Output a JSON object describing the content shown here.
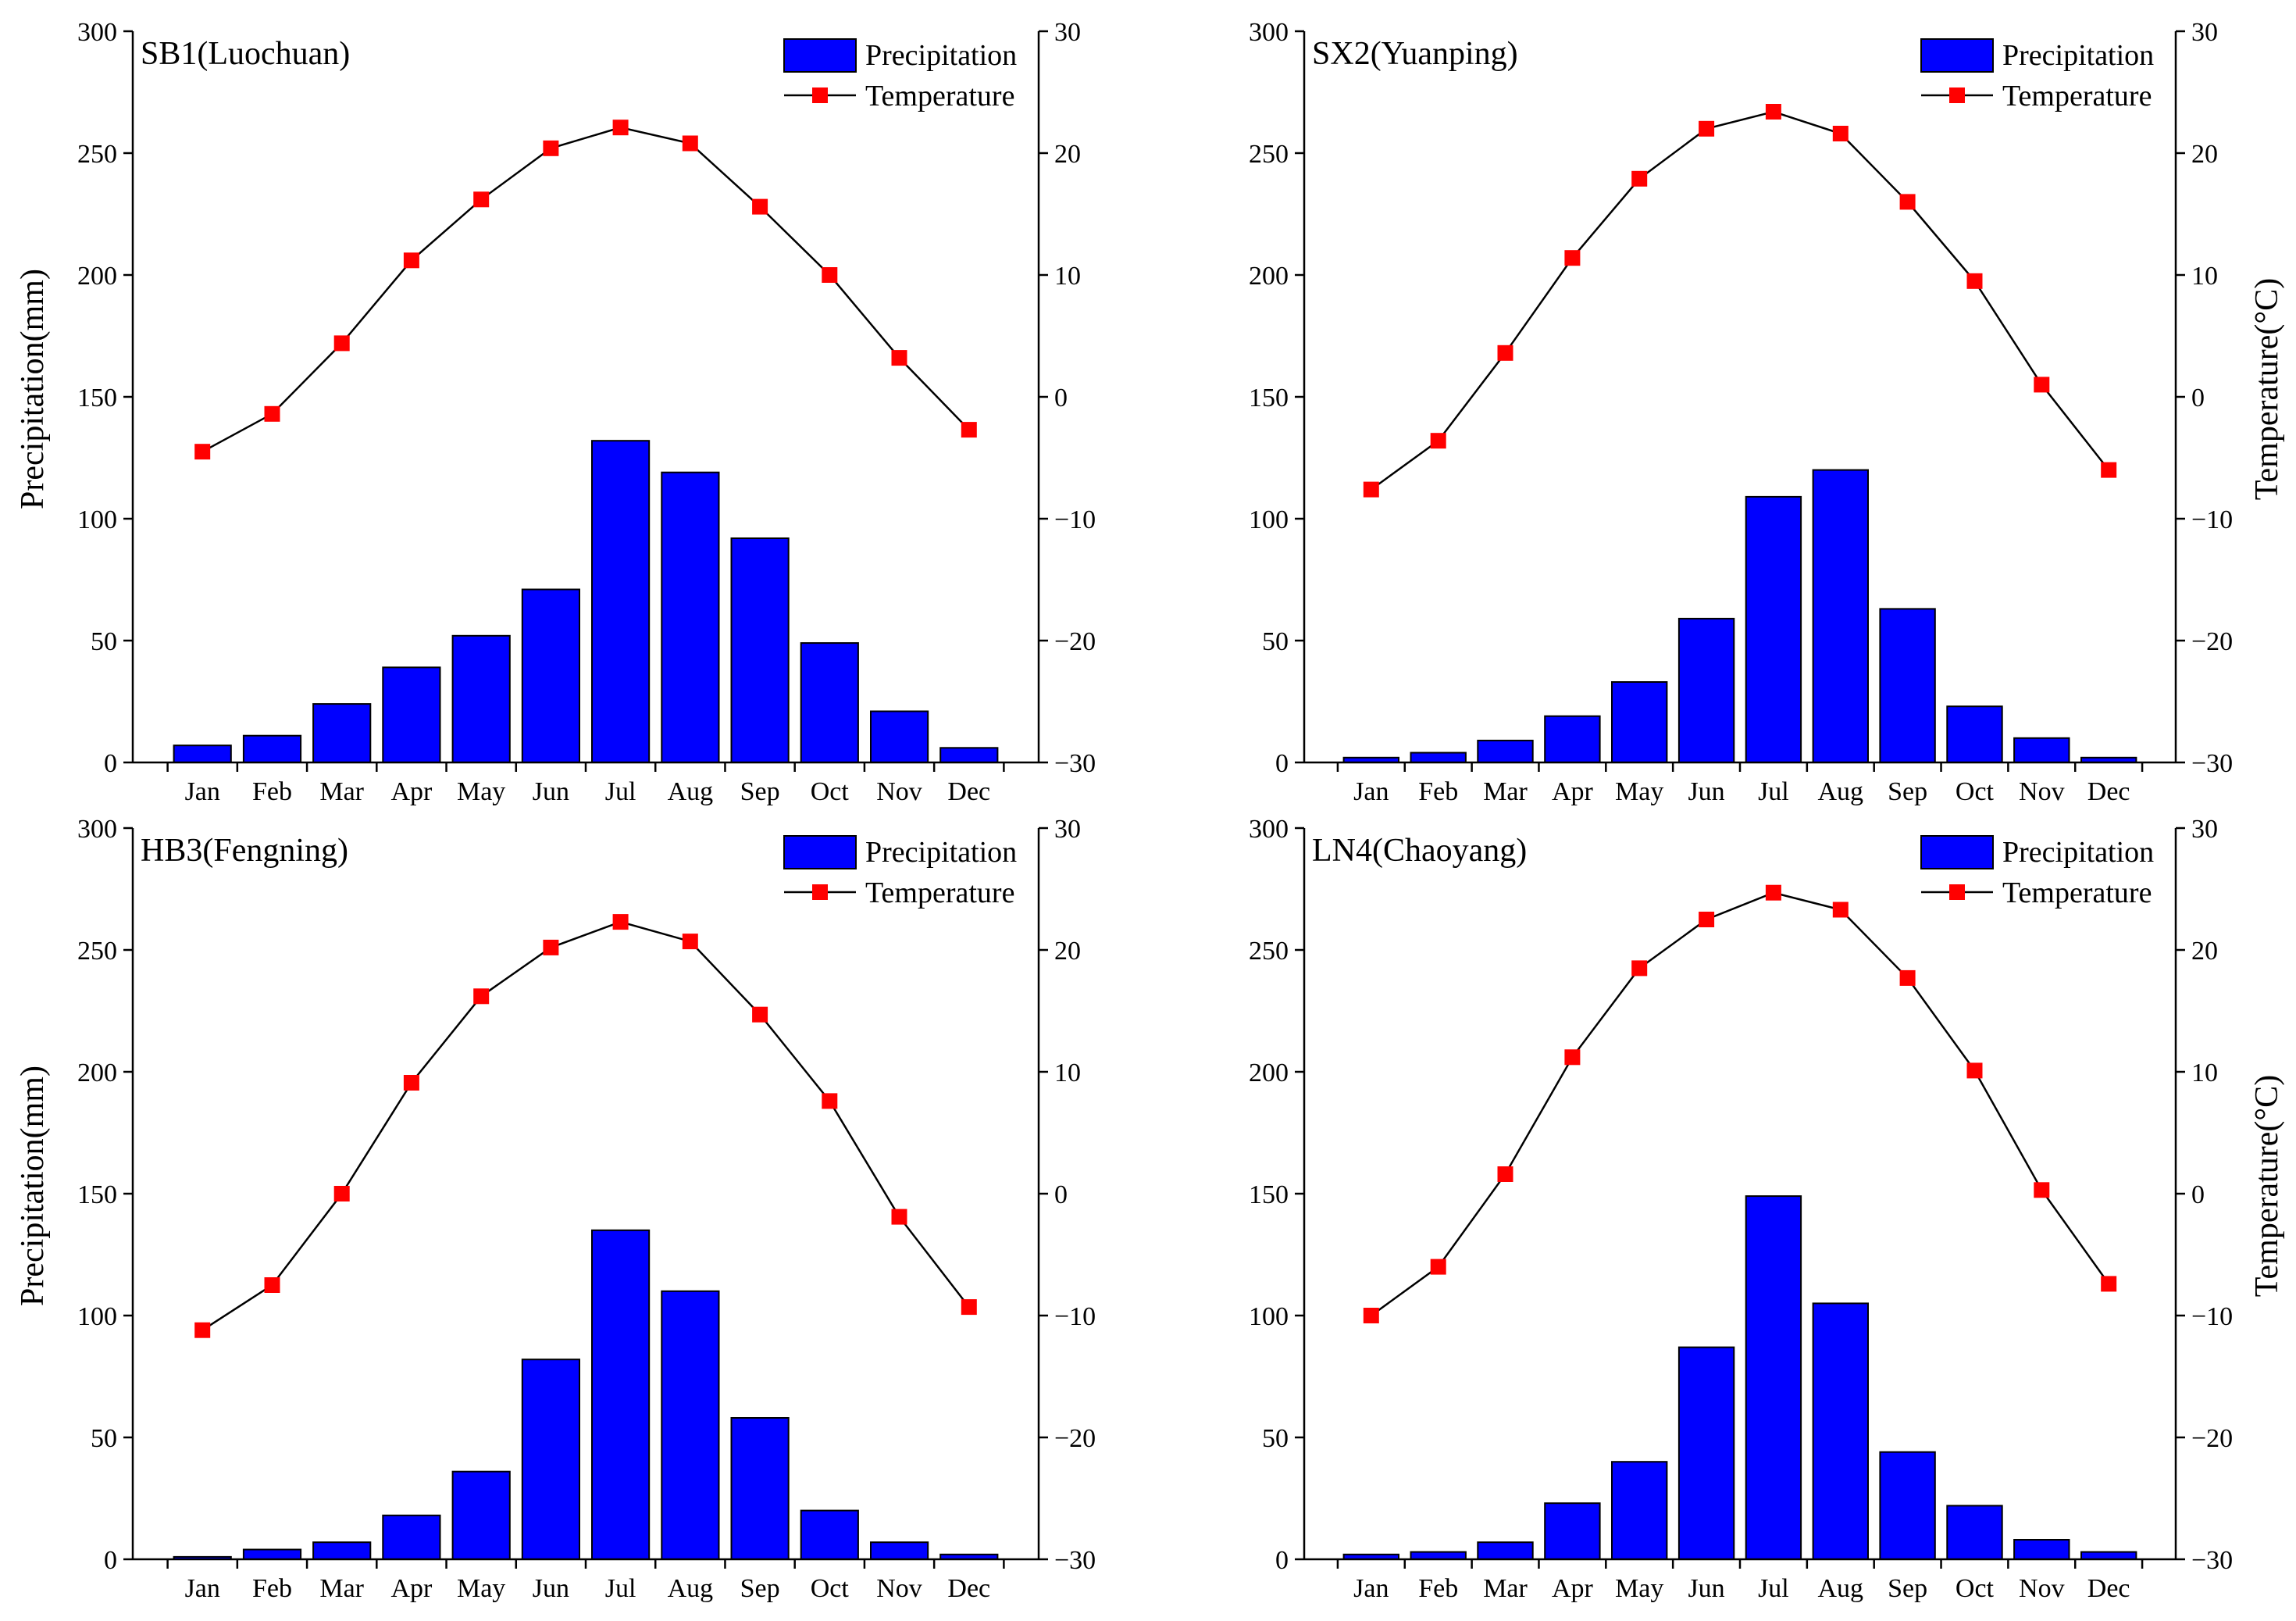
{
  "chart_data": [
    {
      "type": "bar",
      "title": "SB1(Luochuan)",
      "categories": [
        "Jan",
        "Feb",
        "Mar",
        "Apr",
        "May",
        "Jun",
        "Jul",
        "Aug",
        "Sep",
        "Oct",
        "Nov",
        "Dec"
      ],
      "ylabel": "Precipitation(mm)",
      "y2label": "",
      "ylim": [
        0,
        300
      ],
      "y2lim": [
        -30,
        30
      ],
      "yticks": [
        "0",
        "50",
        "100",
        "150",
        "200",
        "250",
        "300"
      ],
      "y2ticks": [
        "−30",
        "−20",
        "−10",
        "0",
        "10",
        "20",
        "30"
      ],
      "legend": [
        "Precipitation",
        "Temperature"
      ],
      "legend_position": "top-right",
      "grid": false,
      "series": [
        {
          "name": "Precipitation",
          "type": "bar",
          "values": [
            7,
            11,
            24,
            39,
            52,
            71,
            132,
            119,
            92,
            49,
            21,
            6
          ]
        },
        {
          "name": "Temperature",
          "type": "line",
          "axis": "right",
          "values": [
            -4.5,
            -1.4,
            4.4,
            11.2,
            16.2,
            20.4,
            22.1,
            20.8,
            15.6,
            10.0,
            3.2,
            -2.7
          ]
        }
      ]
    },
    {
      "type": "bar",
      "title": "SX2(Yuanping)",
      "categories": [
        "Jan",
        "Feb",
        "Mar",
        "Apr",
        "May",
        "Jun",
        "Jul",
        "Aug",
        "Sep",
        "Oct",
        "Nov",
        "Dec"
      ],
      "ylabel": "",
      "y2label": "Temperature(°C)",
      "ylim": [
        0,
        300
      ],
      "y2lim": [
        -30,
        30
      ],
      "yticks": [
        "0",
        "50",
        "100",
        "150",
        "200",
        "250",
        "300"
      ],
      "y2ticks": [
        "−30",
        "−20",
        "−10",
        "0",
        "10",
        "20",
        "30"
      ],
      "legend": [
        "Precipitation",
        "Temperature"
      ],
      "legend_position": "top-right",
      "grid": false,
      "series": [
        {
          "name": "Precipitation",
          "type": "bar",
          "values": [
            2,
            4,
            9,
            19,
            33,
            59,
            109,
            120,
            63,
            23,
            10,
            2
          ]
        },
        {
          "name": "Temperature",
          "type": "line",
          "axis": "right",
          "values": [
            -7.6,
            -3.6,
            3.6,
            11.4,
            17.9,
            22.0,
            23.4,
            21.6,
            16.0,
            9.5,
            1.0,
            -6.0
          ]
        }
      ]
    },
    {
      "type": "bar",
      "title": "HB3(Fengning)",
      "categories": [
        "Jan",
        "Feb",
        "Mar",
        "Apr",
        "May",
        "Jun",
        "Jul",
        "Aug",
        "Sep",
        "Oct",
        "Nov",
        "Dec"
      ],
      "ylabel": "Precipitation(mm)",
      "y2label": "",
      "ylim": [
        0,
        300
      ],
      "y2lim": [
        -30,
        30
      ],
      "yticks": [
        "0",
        "50",
        "100",
        "150",
        "200",
        "250",
        "300"
      ],
      "y2ticks": [
        "−30",
        "−20",
        "−10",
        "0",
        "10",
        "20",
        "30"
      ],
      "legend": [
        "Precipitation",
        "Temperature"
      ],
      "legend_position": "top-right",
      "grid": false,
      "series": [
        {
          "name": "Precipitation",
          "type": "bar",
          "values": [
            1,
            4,
            7,
            18,
            36,
            82,
            135,
            110,
            58,
            20,
            7,
            2
          ]
        },
        {
          "name": "Temperature",
          "type": "line",
          "axis": "right",
          "values": [
            -11.2,
            -7.5,
            0.0,
            9.1,
            16.2,
            20.2,
            22.3,
            20.7,
            14.7,
            7.6,
            -1.9,
            -9.3
          ]
        }
      ]
    },
    {
      "type": "bar",
      "title": "LN4(Chaoyang)",
      "categories": [
        "Jan",
        "Feb",
        "Mar",
        "Apr",
        "May",
        "Jun",
        "Jul",
        "Aug",
        "Sep",
        "Oct",
        "Nov",
        "Dec"
      ],
      "ylabel": "",
      "y2label": "Temperature(°C)",
      "ylim": [
        0,
        300
      ],
      "y2lim": [
        -30,
        30
      ],
      "yticks": [
        "0",
        "50",
        "100",
        "150",
        "200",
        "250",
        "300"
      ],
      "y2ticks": [
        "−30",
        "−20",
        "−10",
        "0",
        "10",
        "20",
        "30"
      ],
      "legend": [
        "Precipitation",
        "Temperature"
      ],
      "legend_position": "top-right",
      "grid": false,
      "series": [
        {
          "name": "Precipitation",
          "type": "bar",
          "values": [
            2,
            3,
            7,
            23,
            40,
            87,
            149,
            105,
            44,
            22,
            8,
            3
          ]
        },
        {
          "name": "Temperature",
          "type": "line",
          "axis": "right",
          "values": [
            -10.0,
            -6.0,
            1.6,
            11.2,
            18.5,
            22.5,
            24.7,
            23.3,
            17.7,
            10.1,
            0.3,
            -7.4
          ]
        }
      ]
    }
  ],
  "colors": {
    "bar_fill": "#0000FF",
    "bar_stroke": "#000000",
    "line": "#000000",
    "marker": "#FF0000",
    "axis": "#000000"
  }
}
